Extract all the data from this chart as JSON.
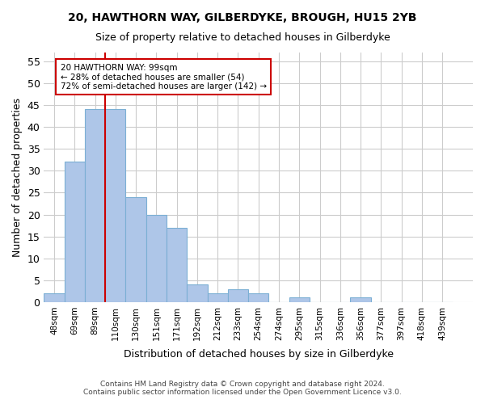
{
  "title1": "20, HAWTHORN WAY, GILBERDYKE, BROUGH, HU15 2YB",
  "title2": "Size of property relative to detached houses in Gilberdyke",
  "xlabel": "Distribution of detached houses by size in Gilberdyke",
  "ylabel": "Number of detached properties",
  "bar_values": [
    2,
    32,
    44,
    44,
    24,
    20,
    17,
    4,
    2,
    3,
    2,
    0,
    1,
    0,
    0,
    1,
    0,
    0,
    0,
    0
  ],
  "bar_labels": [
    "48sqm",
    "69sqm",
    "89sqm",
    "110sqm",
    "130sqm",
    "151sqm",
    "171sqm",
    "192sqm",
    "212sqm",
    "233sqm",
    "254sqm",
    "274sqm",
    "295sqm",
    "315sqm",
    "336sqm",
    "356sqm",
    "377sqm",
    "397sqm",
    "418sqm",
    "439sqm"
  ],
  "bar_color": "#aec6e8",
  "bar_edge_color": "#7bafd4",
  "vline_x_idx": 2,
  "vline_color": "#cc0000",
  "annotation_text": "20 HAWTHORN WAY: 99sqm\n← 28% of detached houses are smaller (54)\n72% of semi-detached houses are larger (142) →",
  "annotation_box_color": "#ffffff",
  "annotation_box_edge": "#cc0000",
  "ylim": [
    0,
    57
  ],
  "yticks": [
    0,
    5,
    10,
    15,
    20,
    25,
    30,
    35,
    40,
    45,
    50,
    55
  ],
  "footer1": "Contains HM Land Registry data © Crown copyright and database right 2024.",
  "footer2": "Contains public sector information licensed under the Open Government Licence v3.0.",
  "bg_color": "#ffffff",
  "grid_color": "#cccccc"
}
